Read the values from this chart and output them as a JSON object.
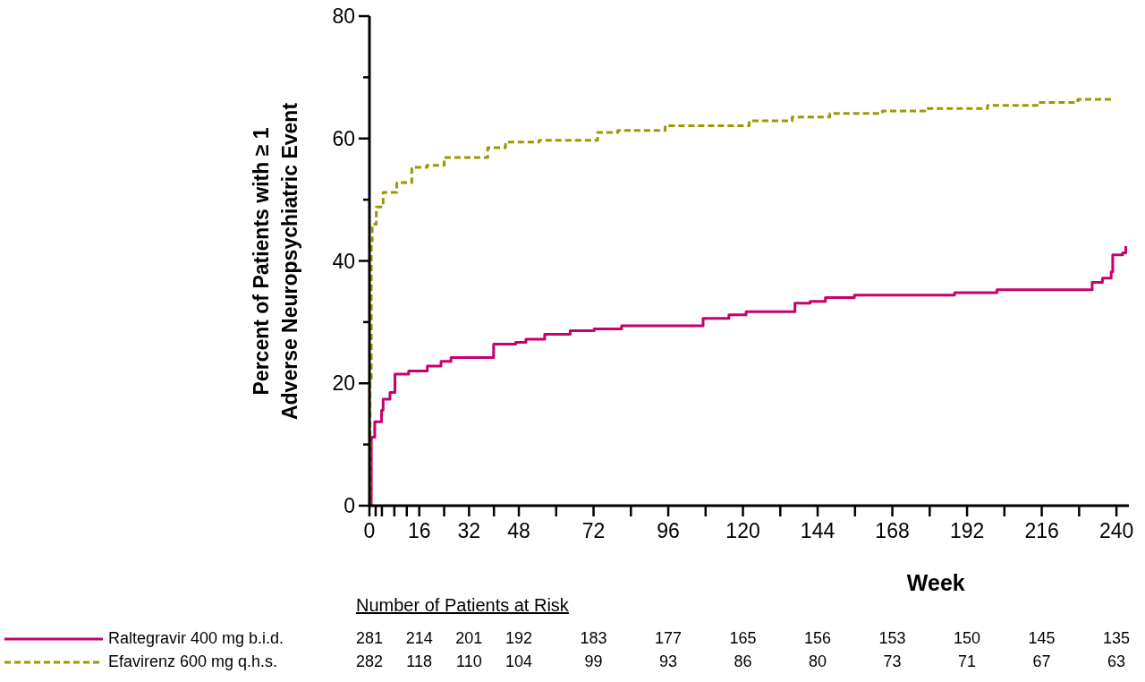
{
  "chart_data": {
    "type": "step",
    "xlabel": "Week",
    "ylabel": "Percent of  Patients with ≥ 1\nAdverse Neuropsychiatric Event",
    "xlim": [
      0,
      244
    ],
    "ylim": [
      0,
      80
    ],
    "xticks": [
      0,
      {
        "value": 2,
        "label": null
      },
      {
        "value": 4,
        "label": null
      },
      {
        "value": 8,
        "label": null
      },
      {
        "value": 12,
        "label": null
      },
      16,
      {
        "value": 24,
        "label": null
      },
      32,
      {
        "value": 40,
        "label": null
      },
      48,
      {
        "value": 60,
        "label": null
      },
      72,
      {
        "value": 84,
        "label": null
      },
      96,
      {
        "value": 108,
        "label": null
      },
      120,
      {
        "value": 132,
        "label": null
      },
      144,
      {
        "value": 156,
        "label": null
      },
      168,
      {
        "value": 180,
        "label": null
      },
      192,
      {
        "value": 204,
        "label": null
      },
      216,
      {
        "value": 228,
        "label": null
      },
      240
    ],
    "yticks": [
      0,
      {
        "value": 10,
        "label": null
      },
      20,
      {
        "value": 30,
        "label": null
      },
      40,
      {
        "value": 50,
        "label": null
      },
      60,
      {
        "value": 70,
        "label": null
      },
      80
    ],
    "legend": "bottom left",
    "series": [
      {
        "name": "Raltegravir 400 mg b.i.d.",
        "color": "#c8006e",
        "line_style": "solid",
        "x": [
          0,
          0.6,
          1.7,
          3.9,
          4.4,
          6.6,
          8.2,
          12.6,
          18.6,
          23,
          26.2,
          37.7,
          39.9,
          47,
          50.3,
          56.3,
          64.5,
          72.2,
          81,
          104.5,
          107.2,
          115.5,
          121,
          136.7,
          141.6,
          146.5,
          155.8,
          188,
          201.6,
          228.9,
          232.2,
          235.5,
          238.3,
          238.8,
          242,
          243
        ],
        "values": [
          0,
          11.2,
          13.7,
          15.6,
          17.4,
          18.5,
          21.5,
          22,
          22.8,
          23.6,
          24.2,
          24.2,
          26.4,
          26.7,
          27.2,
          28,
          28.6,
          28.9,
          29.4,
          29.4,
          30.6,
          31.2,
          31.7,
          33.1,
          33.4,
          34,
          34.4,
          34.8,
          35.3,
          35.3,
          36.5,
          37.2,
          38.2,
          41,
          41.3,
          42.4
        ]
      },
      {
        "name": "Efavirenz 600 mg q.h.s.",
        "color": "#9a9a00",
        "line_style": "dashed",
        "x": [
          0,
          0.2,
          0.6,
          0.9,
          2.2,
          4.4,
          8.8,
          13.6,
          18.5,
          24,
          32.7,
          38,
          43.7,
          52.5,
          54.5,
          70,
          73.3,
          79.8,
          91.8,
          95,
          118,
          122,
          135.8,
          147.9,
          164.8,
          178.4,
          198.6,
          214.5,
          227.6,
          238.5
        ],
        "values": [
          0,
          20.8,
          43.3,
          46,
          48.8,
          51.2,
          52.8,
          55.3,
          55.6,
          56.9,
          56.9,
          58.5,
          59.4,
          59.4,
          59.7,
          59.7,
          61,
          61.3,
          61.3,
          62.1,
          62.1,
          62.9,
          63.5,
          64.1,
          64.5,
          64.9,
          65.4,
          65.9,
          66.4,
          66.4
        ]
      }
    ],
    "annotations": [
      "Number of Patients at Risk",
      "281",
      "214",
      "201",
      "192",
      "183",
      "177",
      "165",
      "156",
      "153",
      "150",
      "145",
      "135",
      "282",
      "118",
      "110",
      "104",
      "99",
      "93",
      "86",
      "80",
      "73",
      "71",
      "67",
      "63"
    ]
  }
}
